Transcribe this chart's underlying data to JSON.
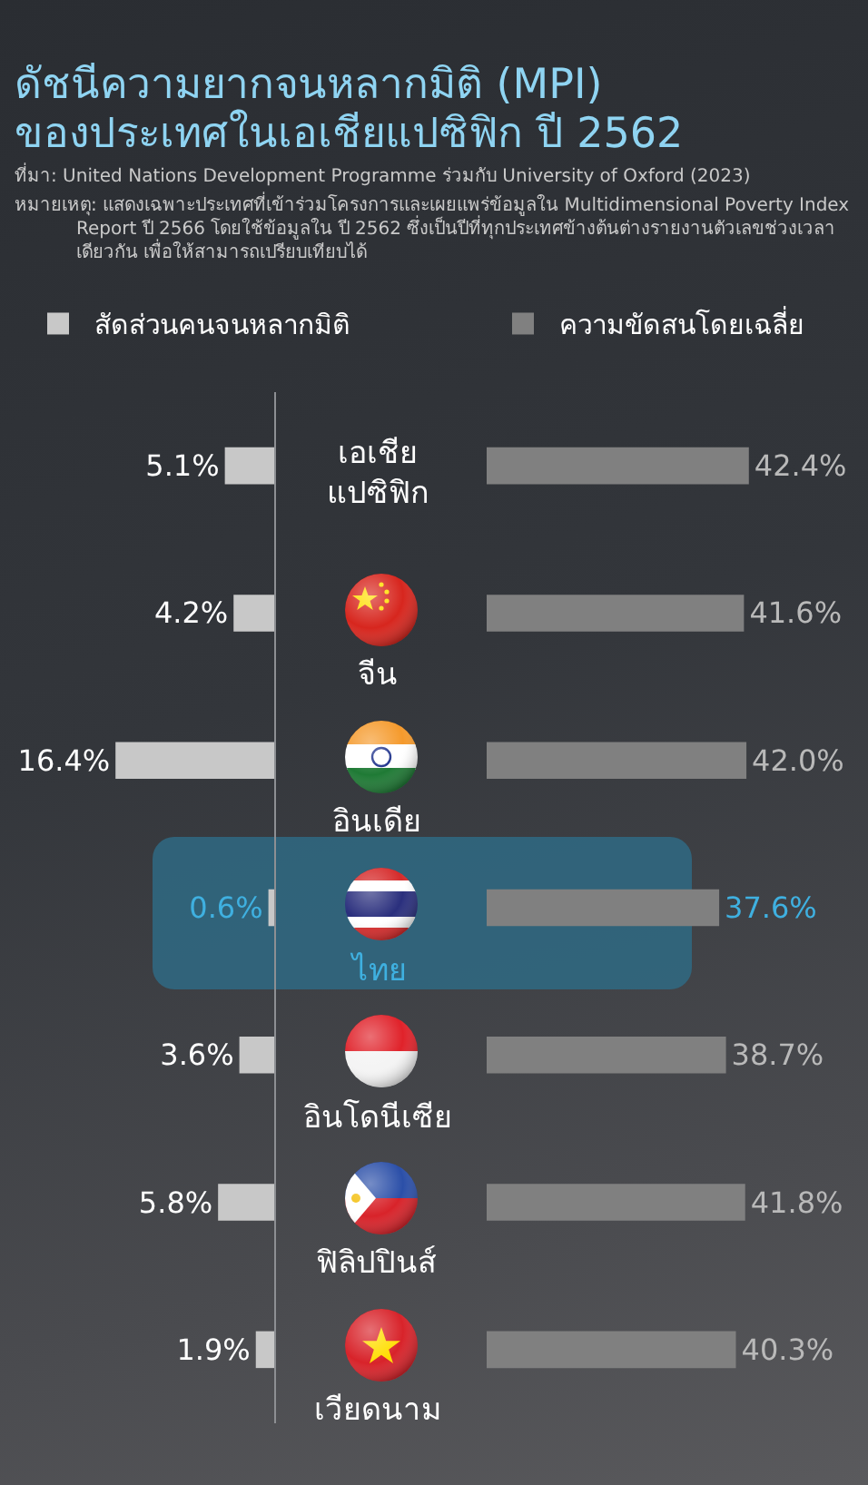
{
  "chart_data": [
    {
      "type": "bar",
      "orientation": "horizontal",
      "title": "ดัชนีความยากจนหลากมิติ (MPI)\nของประเทศในเอเชียแปซิฟิก ปี 2562",
      "annotations": [
        "ที่มา: United Nations Development Programme ร่วมกับ University of Oxford (2023)",
        "หมายเหตุ: แสดงเฉพาะประเทศที่เข้าร่วมโครงการและเผยแพร่ข้อมูลใน Multidimensional Poverty Index Report ปี 2566 โดยใช้ข้อมูลใน ปี 2562 ซึ่งเป็นปีที่ทุกประเทศข้างต้นต่างรายงานตัวเลขช่วงเวลาเดียวกัน เพื่อให้สามารถเปรียบเทียบได้"
      ],
      "categories": [
        "เอเชีย\nแปซิฟิก",
        "จีน",
        "อินเดีย",
        "ไทย",
        "อินโดนีเซีย",
        "ฟิลิปปินส์",
        "เวียดนาม"
      ],
      "series": [
        {
          "name": "สัดส่วนคนจนหลากมิติ",
          "color": "#c8c8c8",
          "values": [
            5.1,
            4.2,
            16.4,
            0.6,
            3.6,
            5.8,
            1.9
          ],
          "value_labels": [
            "5.1%",
            "4.2%",
            "16.4%",
            "0.6%",
            "3.6%",
            "5.8%",
            "1.9%"
          ]
        }
      ],
      "legend": "top",
      "tick_labels": "y"
    },
    {
      "type": "bar",
      "orientation": "horizontal",
      "categories": [
        null,
        null,
        null,
        null,
        null,
        null,
        null
      ],
      "series": [
        {
          "name": "ความขัดสนโดยเฉลี่ย",
          "color": "#808080",
          "values": [
            42.4,
            41.6,
            42.0,
            37.6,
            38.7,
            41.8,
            40.3
          ],
          "value_labels": [
            "42.4%",
            "41.6%",
            "42.0%",
            "37.6%",
            "38.7%",
            "41.8%",
            "40.3%"
          ]
        }
      ],
      "legend": "top",
      "tick_labels": false
    }
  ]
}
